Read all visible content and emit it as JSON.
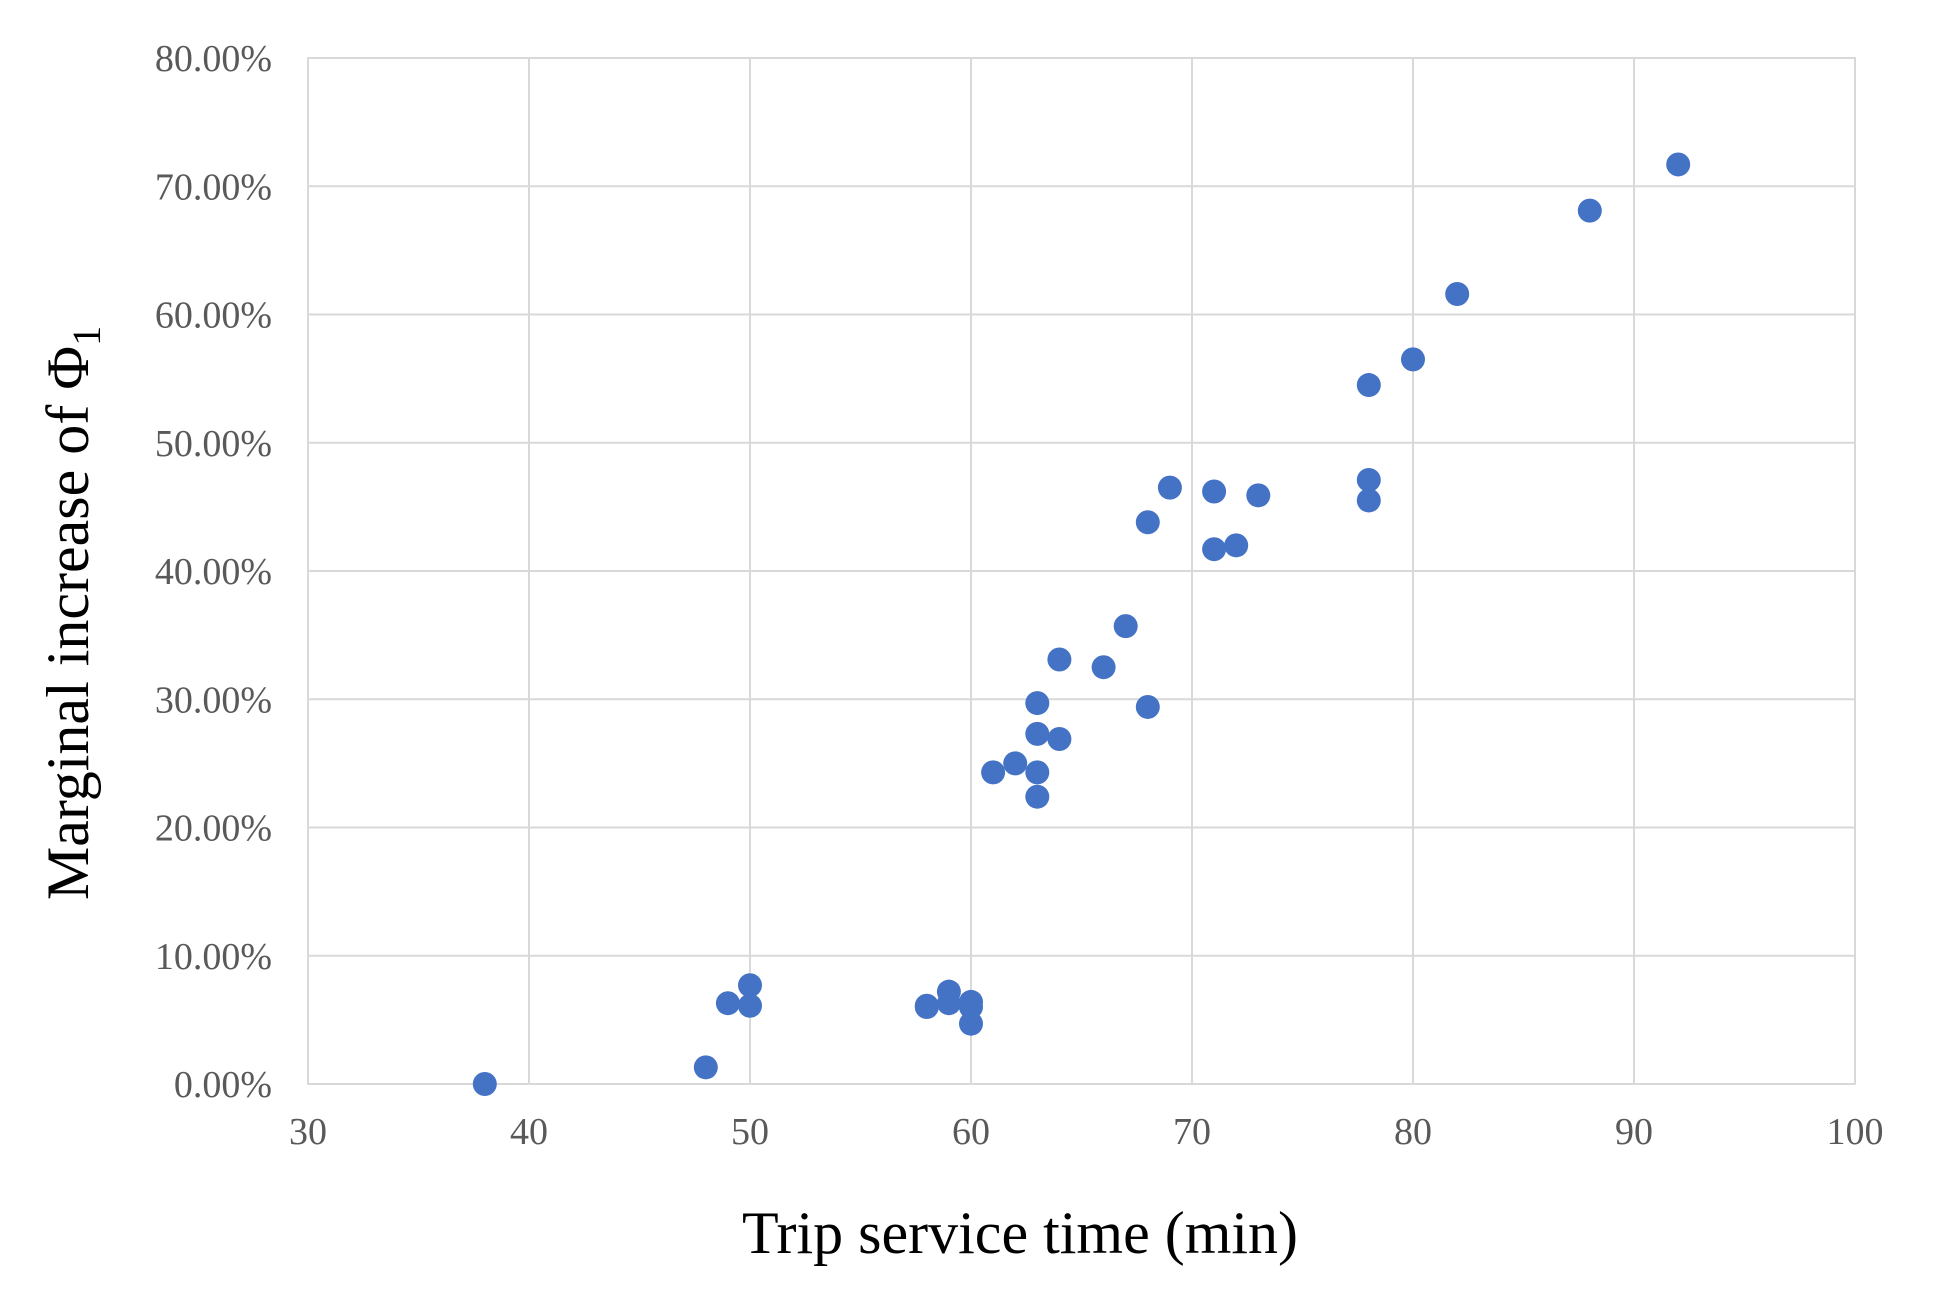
{
  "chart_data": {
    "type": "scatter",
    "title": "",
    "xlabel": "Trip service time (min)",
    "ylabel_main": "Marginal increase of Φ",
    "ylabel_subscript": "1",
    "xlim": [
      30,
      100
    ],
    "ylim": [
      0,
      0.8
    ],
    "x_ticks": [
      30,
      40,
      50,
      60,
      70,
      80,
      90,
      100
    ],
    "x_tick_labels": [
      "30",
      "40",
      "50",
      "60",
      "70",
      "80",
      "90",
      "100"
    ],
    "y_ticks": [
      0,
      0.1,
      0.2,
      0.3,
      0.4,
      0.5,
      0.6,
      0.7,
      0.8
    ],
    "y_tick_labels": [
      "0.00%",
      "10.00%",
      "20.00%",
      "30.00%",
      "40.00%",
      "50.00%",
      "60.00%",
      "70.00%",
      "80.00%"
    ],
    "grid": true,
    "legend": "none",
    "marker_color": "#4472C4",
    "points": [
      {
        "x": 38,
        "y": 0.0
      },
      {
        "x": 48,
        "y": 0.013
      },
      {
        "x": 49,
        "y": 0.063
      },
      {
        "x": 50,
        "y": 0.061
      },
      {
        "x": 50,
        "y": 0.077
      },
      {
        "x": 58,
        "y": 0.06
      },
      {
        "x": 58,
        "y": 0.061
      },
      {
        "x": 59,
        "y": 0.072
      },
      {
        "x": 59,
        "y": 0.063
      },
      {
        "x": 60,
        "y": 0.064
      },
      {
        "x": 60,
        "y": 0.06
      },
      {
        "x": 60,
        "y": 0.047
      },
      {
        "x": 61,
        "y": 0.243
      },
      {
        "x": 62,
        "y": 0.25
      },
      {
        "x": 63,
        "y": 0.297
      },
      {
        "x": 63,
        "y": 0.273
      },
      {
        "x": 63,
        "y": 0.243
      },
      {
        "x": 63,
        "y": 0.224
      },
      {
        "x": 64,
        "y": 0.331
      },
      {
        "x": 64,
        "y": 0.269
      },
      {
        "x": 66,
        "y": 0.325
      },
      {
        "x": 67,
        "y": 0.357
      },
      {
        "x": 68,
        "y": 0.438
      },
      {
        "x": 68,
        "y": 0.294
      },
      {
        "x": 69,
        "y": 0.465
      },
      {
        "x": 71,
        "y": 0.462
      },
      {
        "x": 71,
        "y": 0.417
      },
      {
        "x": 72,
        "y": 0.42
      },
      {
        "x": 73,
        "y": 0.459
      },
      {
        "x": 78,
        "y": 0.545
      },
      {
        "x": 78,
        "y": 0.471
      },
      {
        "x": 78,
        "y": 0.455
      },
      {
        "x": 80,
        "y": 0.565
      },
      {
        "x": 82,
        "y": 0.616
      },
      {
        "x": 88,
        "y": 0.681
      },
      {
        "x": 92,
        "y": 0.717
      }
    ]
  }
}
